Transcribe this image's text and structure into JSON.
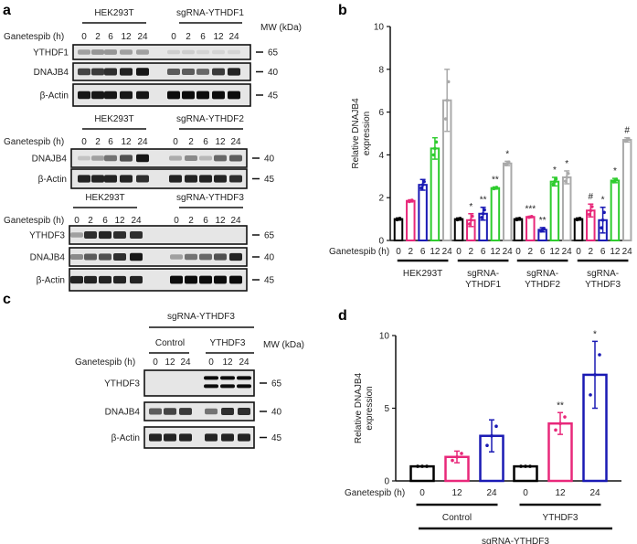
{
  "panel_labels": {
    "a": "a",
    "b": "b",
    "c": "c",
    "d": "d"
  },
  "treatment_label": "Ganetespib (h)",
  "mw_label": "MW (kDa)",
  "colors": {
    "t0": "#000000",
    "t2": "#e8287a",
    "t6": "#1a1ab4",
    "t12": "#2ecc2e",
    "t24": "#aaaaaa",
    "blot_bg": "#e6e6e6"
  },
  "panel_a": {
    "groups": [
      {
        "left_title": "HEK293T",
        "right_title": "sgRNA-YTHDF1",
        "lanes": [
          "0",
          "2",
          "6",
          "12",
          "24",
          "0",
          "2",
          "6",
          "12",
          "24"
        ],
        "rows": [
          {
            "label": "YTHDF1",
            "mw": "65",
            "bands": [
              0.3,
              0.35,
              0.35,
              0.3,
              0.3,
              0.1,
              0.1,
              0.08,
              0.08,
              0.08
            ]
          },
          {
            "label": "DNAJB4",
            "mw": "40",
            "bands": [
              0.7,
              0.75,
              0.8,
              0.85,
              0.9,
              0.6,
              0.6,
              0.55,
              0.75,
              0.85
            ]
          },
          {
            "label": "β-Actin",
            "mw": "45",
            "bands": [
              0.9,
              0.9,
              0.9,
              0.9,
              0.9,
              0.95,
              0.95,
              0.95,
              0.95,
              0.95
            ]
          }
        ]
      },
      {
        "left_title": "HEK293T",
        "right_title": "sgRNA-YTHDF2",
        "lanes": [
          "0",
          "2",
          "6",
          "12",
          "24",
          "0",
          "2",
          "6",
          "12",
          "24"
        ],
        "rows": [
          {
            "label": "DNAJB4",
            "mw": "40",
            "bands": [
              0.15,
              0.3,
              0.5,
              0.65,
              0.9,
              0.25,
              0.4,
              0.2,
              0.55,
              0.6
            ]
          },
          {
            "label": "β-Actin",
            "mw": "45",
            "bands": [
              0.85,
              0.85,
              0.85,
              0.85,
              0.8,
              0.85,
              0.85,
              0.85,
              0.85,
              0.8
            ]
          }
        ]
      },
      {
        "left_title": "HEK293T",
        "right_title": "sgRNA-YTHDF3",
        "lanes": [
          "0",
          "2",
          "6",
          "12",
          "24",
          "0",
          "2",
          "6",
          "12",
          "24"
        ],
        "rows": [
          {
            "label": "YTHDF3",
            "mw": "65",
            "bands": [
              0.3,
              0.8,
              0.85,
              0.8,
              0.8,
              0,
              0,
              0,
              0,
              0
            ]
          },
          {
            "label": "DNAJB4",
            "mw": "40",
            "bands": [
              0.4,
              0.6,
              0.65,
              0.8,
              0.9,
              0.3,
              0.5,
              0.55,
              0.65,
              0.85
            ]
          },
          {
            "label": "β-Actin",
            "mw": "45",
            "bands": [
              0.85,
              0.85,
              0.85,
              0.85,
              0.85,
              0.95,
              0.95,
              0.95,
              0.95,
              0.95
            ]
          }
        ]
      }
    ]
  },
  "panel_c": {
    "title": "sgRNA-YTHDF3",
    "subgroups": [
      "Control",
      "YTHDF3"
    ],
    "lanes": [
      "0",
      "12",
      "24",
      "0",
      "12",
      "24"
    ],
    "rows": [
      {
        "label": "YTHDF3",
        "mw": "65",
        "bands": [
          0,
          0,
          0,
          0.95,
          0.95,
          0.95
        ],
        "doublet": true
      },
      {
        "label": "DNAJB4",
        "mw": "40",
        "bands": [
          0.6,
          0.7,
          0.75,
          0.5,
          0.8,
          0.8
        ]
      },
      {
        "label": "β-Actin",
        "mw": "45",
        "bands": [
          0.85,
          0.85,
          0.85,
          0.85,
          0.85,
          0.85
        ]
      }
    ]
  },
  "chart_data": [
    {
      "id": "b",
      "type": "bar",
      "ylabel": "Relative DNAJB4 expression",
      "ylabel_lines": [
        "Relative DNAJB4",
        "expression"
      ],
      "ylim": [
        0,
        10
      ],
      "yticks": [
        "0",
        "2",
        "4",
        "6",
        "8",
        "10"
      ],
      "ytick_values": [
        0,
        2,
        4,
        6,
        8,
        10
      ],
      "xlabel": "Ganetespib (h)",
      "categories": [
        "0",
        "2",
        "6",
        "12",
        "24"
      ],
      "groups": [
        {
          "name": "HEK293T",
          "name_lines": [
            "HEK293T"
          ],
          "values": [
            1,
            1.85,
            2.6,
            4.3,
            6.55
          ],
          "errors": [
            0.05,
            0.05,
            0.25,
            0.5,
            1.45
          ],
          "annotations": [
            "",
            "",
            "",
            "",
            ""
          ]
        },
        {
          "name": "sgRNA-YTHDF1",
          "name_lines": [
            "sgRNA-",
            "YTHDF1"
          ],
          "values": [
            1,
            0.95,
            1.25,
            2.45,
            3.6
          ],
          "errors": [
            0.05,
            0.3,
            0.3,
            0.05,
            0.1
          ],
          "annotations": [
            "",
            "*",
            "**",
            "**",
            "*"
          ]
        },
        {
          "name": "sgRNA-YTHDF2",
          "name_lines": [
            "sgRNA-",
            "YTHDF2"
          ],
          "values": [
            1,
            1.1,
            0.5,
            2.75,
            2.95
          ],
          "errors": [
            0.05,
            0.03,
            0.1,
            0.2,
            0.3
          ],
          "annotations": [
            "",
            "***",
            "**",
            "*",
            "*"
          ]
        },
        {
          "name": "sgRNA-YTHDF3",
          "name_lines": [
            "sgRNA-",
            "YTHDF3"
          ],
          "values": [
            1,
            1.4,
            0.95,
            2.8,
            4.7
          ],
          "errors": [
            0.05,
            0.3,
            0.6,
            0.1,
            0.1
          ],
          "annotations": [
            "",
            "#",
            "*",
            "*",
            "#"
          ]
        }
      ],
      "grid": false
    },
    {
      "id": "d",
      "type": "bar",
      "ylabel": "Relative DNAJB4 expression",
      "ylabel_lines": [
        "Relative DNAJB4",
        "expression"
      ],
      "ylim": [
        0,
        10
      ],
      "yticks": [
        "0",
        "5",
        "10"
      ],
      "ytick_values": [
        0,
        5,
        10
      ],
      "xlabel": "Ganetespib (h)",
      "categories": [
        "0",
        "12",
        "24"
      ],
      "groups": [
        {
          "name": "Control",
          "values": [
            1,
            1.65,
            3.1
          ],
          "errors": [
            0,
            0.4,
            1.1
          ],
          "annotations": [
            "",
            "",
            ""
          ]
        },
        {
          "name": "YTHDF3",
          "values": [
            1,
            3.95,
            7.3
          ],
          "errors": [
            0,
            0.75,
            2.3
          ],
          "annotations": [
            "",
            "**",
            "*"
          ]
        }
      ],
      "outer_label": "sgRNA-YTHDF3",
      "grid": false
    }
  ]
}
